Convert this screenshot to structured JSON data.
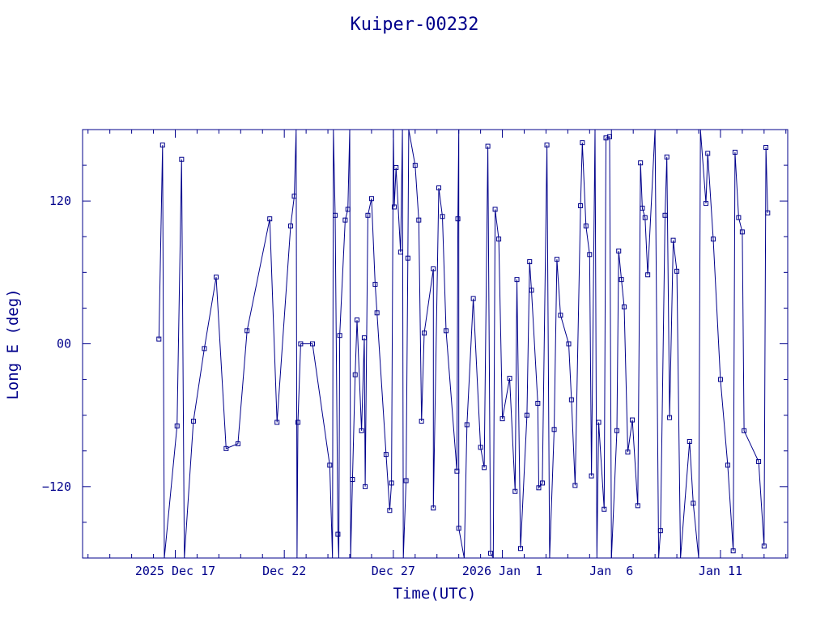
{
  "colors": {
    "ink": "#00008b",
    "background": "#ffffff"
  },
  "chart_data": {
    "type": "line",
    "title": "Kuiper-00232",
    "xlabel": "Time(UTC)",
    "ylabel": "Long E (deg)",
    "xlim": [
      "2025-12-12T18:00",
      "2026-01-14T02:00"
    ],
    "ylim": [
      -180,
      180
    ],
    "y_ticks": [
      -120,
      0,
      120
    ],
    "y_tick_labels": [
      "−120",
      "00",
      "120"
    ],
    "x_ticks": [
      {
        "date": "2025-12-17",
        "label": "2025 Dec 17"
      },
      {
        "date": "2025-12-22",
        "label": "Dec 22"
      },
      {
        "date": "2025-12-27",
        "label": "Dec 27"
      },
      {
        "date": "2026-01-01",
        "label": "2026 Jan  1"
      },
      {
        "date": "2026-01-06",
        "label": "Jan  6"
      },
      {
        "date": "2026-01-11",
        "label": "Jan 11"
      }
    ],
    "grid": false,
    "marker": "square",
    "series": [
      {
        "values": [
          [
            "2025-12-16T06:00",
            4
          ],
          [
            "2025-12-16T10:00",
            167
          ],
          [
            "2025-12-16T12:00",
            -180
          ],
          [
            "2025-12-17T02:00",
            -69
          ],
          [
            "2025-12-17T07:00",
            155
          ],
          [
            "2025-12-17T10:00",
            -180
          ],
          [
            "2025-12-17T20:00",
            -65
          ],
          [
            "2025-12-18T08:00",
            -4
          ],
          [
            "2025-12-18T21:00",
            56
          ],
          [
            "2025-12-19T08:00",
            -88
          ],
          [
            "2025-12-19T21:00",
            -84
          ],
          [
            "2025-12-20T07:00",
            11
          ],
          [
            "2025-12-21T08:00",
            105
          ],
          [
            "2025-12-21T16:00",
            -66
          ],
          [
            "2025-12-22T07:00",
            99
          ],
          [
            "2025-12-22T11:00",
            124
          ],
          [
            "2025-12-22T13:00",
            180
          ],
          [
            "2025-12-22T14:00",
            -180
          ],
          [
            "2025-12-22T15:00",
            -66
          ],
          [
            "2025-12-22T18:00",
            0
          ],
          [
            "2025-12-23T07:00",
            0
          ],
          [
            "2025-12-24T02:00",
            -102
          ],
          [
            "2025-12-24T05:00",
            -180
          ],
          [
            "2025-12-24T06:00",
            180
          ],
          [
            "2025-12-24T08:00",
            108
          ],
          [
            "2025-12-24T11:00",
            -160
          ],
          [
            "2025-12-24T12:00",
            -180
          ],
          [
            "2025-12-24T13:00",
            7
          ],
          [
            "2025-12-24T19:00",
            104
          ],
          [
            "2025-12-24T22:00",
            113
          ],
          [
            "2025-12-25T00:00",
            180
          ],
          [
            "2025-12-25T01:00",
            -180
          ],
          [
            "2025-12-25T03:00",
            -114
          ],
          [
            "2025-12-25T06:00",
            -26
          ],
          [
            "2025-12-25T08:00",
            20
          ],
          [
            "2025-12-25T13:00",
            -73
          ],
          [
            "2025-12-25T16:00",
            5
          ],
          [
            "2025-12-25T17:00",
            -120
          ],
          [
            "2025-12-25T20:00",
            108
          ],
          [
            "2025-12-26T00:00",
            122
          ],
          [
            "2025-12-26T04:00",
            50
          ],
          [
            "2025-12-26T06:00",
            26
          ],
          [
            "2025-12-26T16:00",
            -93
          ],
          [
            "2025-12-26T20:00",
            -140
          ],
          [
            "2025-12-26T22:00",
            -117
          ],
          [
            "2025-12-27T00:00",
            180
          ],
          [
            "2025-12-27T01:00",
            115
          ],
          [
            "2025-12-27T03:00",
            148
          ],
          [
            "2025-12-27T08:00",
            77
          ],
          [
            "2025-12-27T10:00",
            180
          ],
          [
            "2025-12-27T11:00",
            -180
          ],
          [
            "2025-12-27T14:00",
            -115
          ],
          [
            "2025-12-27T16:00",
            72
          ],
          [
            "2025-12-27T17:00",
            180
          ],
          [
            "2025-12-28T00:00",
            150
          ],
          [
            "2025-12-28T04:00",
            104
          ],
          [
            "2025-12-28T07:00",
            -65
          ],
          [
            "2025-12-28T10:00",
            9
          ],
          [
            "2025-12-28T20:00",
            63
          ],
          [
            "2025-12-28T20:00",
            -138
          ],
          [
            "2025-12-29T02:00",
            131
          ],
          [
            "2025-12-29T06:00",
            107
          ],
          [
            "2025-12-29T10:00",
            11
          ],
          [
            "2025-12-29T22:00",
            -107
          ],
          [
            "2025-12-29T23:00",
            105
          ],
          [
            "2025-12-30T00:00",
            180
          ],
          [
            "2025-12-30T00:00",
            -155
          ],
          [
            "2025-12-30T06:00",
            -180
          ],
          [
            "2025-12-30T09:00",
            -68
          ],
          [
            "2025-12-30T16:00",
            38
          ],
          [
            "2025-12-31T00:00",
            -87
          ],
          [
            "2025-12-31T04:00",
            -104
          ],
          [
            "2025-12-31T08:00",
            166
          ],
          [
            "2025-12-31T11:00",
            -176
          ],
          [
            "2025-12-31T14:00",
            -180
          ],
          [
            "2025-12-31T16:00",
            113
          ],
          [
            "2025-12-31T20:00",
            88
          ],
          [
            "2026-01-01T00:00",
            -63
          ],
          [
            "2026-01-01T08:00",
            -29
          ],
          [
            "2026-01-01T14:00",
            -124
          ],
          [
            "2026-01-01T16:00",
            54
          ],
          [
            "2026-01-01T20:00",
            -172
          ],
          [
            "2026-01-02T03:00",
            -60
          ],
          [
            "2026-01-02T06:00",
            69
          ],
          [
            "2026-01-02T08:00",
            45
          ],
          [
            "2026-01-02T15:00",
            -50
          ],
          [
            "2026-01-02T16:00",
            -121
          ],
          [
            "2026-01-02T20:00",
            -117
          ],
          [
            "2026-01-03T01:00",
            167
          ],
          [
            "2026-01-03T04:00",
            -180
          ],
          [
            "2026-01-03T09:00",
            -72
          ],
          [
            "2026-01-03T12:00",
            71
          ],
          [
            "2026-01-03T16:00",
            24
          ],
          [
            "2026-01-04T01:00",
            0
          ],
          [
            "2026-01-04T04:00",
            -47
          ],
          [
            "2026-01-04T08:00",
            -119
          ],
          [
            "2026-01-04T14:00",
            116
          ],
          [
            "2026-01-04T16:00",
            169
          ],
          [
            "2026-01-04T20:00",
            99
          ],
          [
            "2026-01-05T00:00",
            75
          ],
          [
            "2026-01-05T02:00",
            -111
          ],
          [
            "2026-01-05T06:00",
            180
          ],
          [
            "2026-01-05T08:00",
            -180
          ],
          [
            "2026-01-05T10:00",
            -66
          ],
          [
            "2026-01-05T16:00",
            -139
          ],
          [
            "2026-01-05T18:00",
            173
          ],
          [
            "2026-01-05T22:00",
            174
          ],
          [
            "2026-01-06T00:00",
            -180
          ],
          [
            "2026-01-06T06:00",
            -73
          ],
          [
            "2026-01-06T08:00",
            78
          ],
          [
            "2026-01-06T11:00",
            54
          ],
          [
            "2026-01-06T14:00",
            31
          ],
          [
            "2026-01-06T18:00",
            -91
          ],
          [
            "2026-01-06T23:00",
            -64
          ],
          [
            "2026-01-07T05:00",
            -136
          ],
          [
            "2026-01-07T08:00",
            152
          ],
          [
            "2026-01-07T10:00",
            114
          ],
          [
            "2026-01-07T13:00",
            106
          ],
          [
            "2026-01-07T16:00",
            58
          ],
          [
            "2026-01-08T00:00",
            180
          ],
          [
            "2026-01-08T04:00",
            -180
          ],
          [
            "2026-01-08T06:00",
            -157
          ],
          [
            "2026-01-08T11:00",
            108
          ],
          [
            "2026-01-08T13:00",
            157
          ],
          [
            "2026-01-08T16:00",
            -62
          ],
          [
            "2026-01-08T20:00",
            87
          ],
          [
            "2026-01-09T00:00",
            61
          ],
          [
            "2026-01-09T04:00",
            -180
          ],
          [
            "2026-01-09T14:00",
            -82
          ],
          [
            "2026-01-09T18:00",
            -134
          ],
          [
            "2026-01-10T00:00",
            -180
          ],
          [
            "2026-01-10T02:00",
            180
          ],
          [
            "2026-01-10T08:00",
            118
          ],
          [
            "2026-01-10T10:00",
            160
          ],
          [
            "2026-01-10T16:00",
            88
          ],
          [
            "2026-01-11T00:00",
            -30
          ],
          [
            "2026-01-11T08:00",
            -102
          ],
          [
            "2026-01-11T14:00",
            -174
          ],
          [
            "2026-01-11T16:00",
            161
          ],
          [
            "2026-01-11T20:00",
            106
          ],
          [
            "2026-01-12T00:00",
            94
          ],
          [
            "2026-01-12T02:00",
            -73
          ],
          [
            "2026-01-12T18:00",
            -99
          ],
          [
            "2026-01-13T00:00",
            -170
          ],
          [
            "2026-01-13T02:00",
            165
          ],
          [
            "2026-01-13T04:00",
            110
          ]
        ]
      }
    ]
  }
}
